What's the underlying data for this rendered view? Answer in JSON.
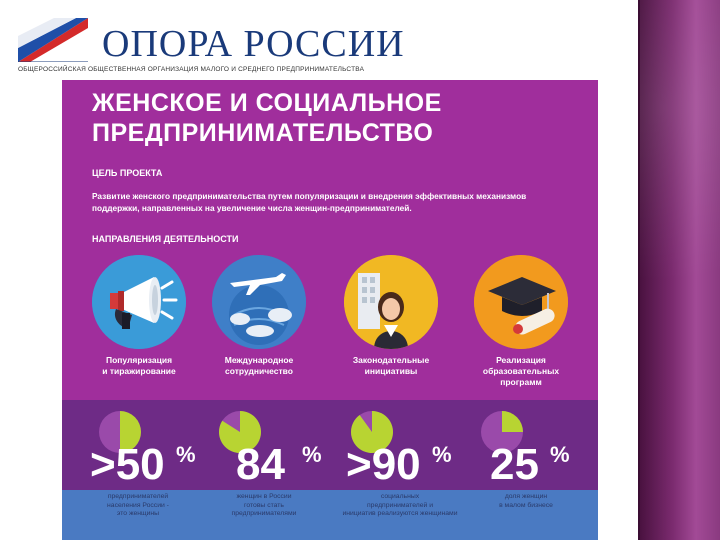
{
  "logo": {
    "name": "ОПОРА РОССИИ",
    "subtitle": "ОБЩЕРОССИЙСКАЯ ОБЩЕСТВЕННАЯ ОРГАНИЗАЦИЯ МАЛОГО И СРЕДНЕГО ПРЕДПРИНИМАТЕЛЬСТВА",
    "colors": {
      "white": "#ffffff",
      "blue": "#1f4fa8",
      "red": "#d42a2a"
    }
  },
  "poster": {
    "title_line1": "ЖЕНСКОЕ И СОЦИАЛЬНОЕ",
    "title_line2": "ПРЕДПРИНИМАТЕЛЬСТВО",
    "goal_heading": "ЦЕЛЬ ПРОЕКТА",
    "goal_text": "Развитие женского предпринимательства путем популяризации и внедрения эффективных механизмов поддержки, направленных на увеличение числа женщин-предпринимателей.",
    "directions_heading": "НАПРАВЛЕНИЯ ДЕЯТЕЛЬНОСТИ",
    "background_color": "#a02e9c",
    "directions": [
      {
        "icon": "megaphone-icon",
        "label_line1": "Популяризация",
        "label_line2": "и тиражирование",
        "label_line3": ""
      },
      {
        "icon": "globe-plane-icon",
        "label_line1": "Международное",
        "label_line2": "сотрудничество",
        "label_line3": ""
      },
      {
        "icon": "businesswoman-icon",
        "label_line1": "Законодательные",
        "label_line2": "инициативы",
        "label_line3": ""
      },
      {
        "icon": "graduation-cap-icon",
        "label_line1": "Реализация",
        "label_line2": "образовательных",
        "label_line3": "программ"
      }
    ],
    "stats": [
      {
        "value": ">50",
        "unit": "%",
        "fraction": 0.5,
        "caption_line1": "предпринимателей",
        "caption_line2": "населения России -",
        "caption_line3": "это женщины"
      },
      {
        "value": "84",
        "unit": "%",
        "fraction": 0.84,
        "caption_line1": "женщин в России",
        "caption_line2": "готовы стать",
        "caption_line3": "предпринимателями"
      },
      {
        "value": ">90",
        "unit": "%",
        "fraction": 0.9,
        "caption_line1": "социальных",
        "caption_line2": "предпринимателей и",
        "caption_line3": "инициатив реализуются женщинами"
      },
      {
        "value": "25",
        "unit": "%",
        "fraction": 0.25,
        "caption_line1": "доля женщин",
        "caption_line2": "в малом бизнесе",
        "caption_line3": ""
      }
    ]
  }
}
